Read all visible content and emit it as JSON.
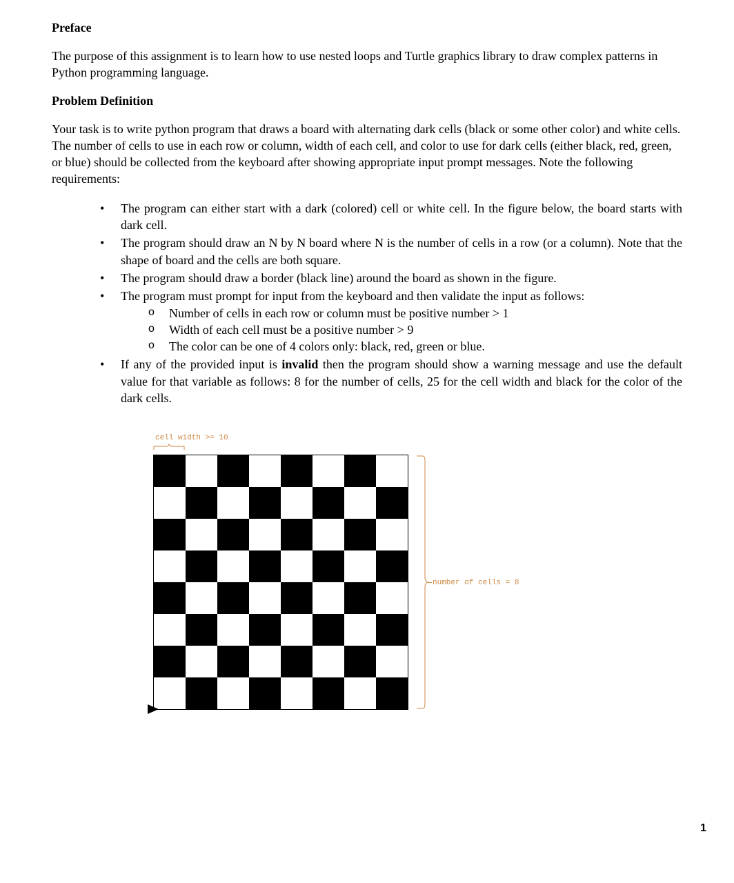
{
  "preface": {
    "heading": "Preface",
    "text": "The purpose of this assignment is to learn how to use nested loops and Turtle graphics library to draw complex patterns in Python programming language."
  },
  "problem": {
    "heading": "Problem Definition",
    "intro": "Your task is to write python program that draws a board with alternating dark cells (black or some other color) and white cells. The number of cells to use in each row or column, width of each cell, and color to use for dark cells (either black, red, green, or blue) should be collected from the keyboard after showing appropriate input prompt messages. Note the following requirements:"
  },
  "bullets": {
    "b1": "The program can either start with a dark (colored) cell or white cell. In the figure below, the board starts with dark cell.",
    "b2": "The program should draw an N by N board where N is the number of cells in a row (or a column). Note that the shape of board and the cells are both square.",
    "b3": "The program should draw a border (black line) around the board as shown in the figure.",
    "b4": "The program must prompt for input from the keyboard and then validate the input as follows:",
    "b4_sub1": "Number of cells in each row or column must be positive number > 1",
    "b4_sub2": "Width of each cell must be a positive number > 9",
    "b4_sub3": "The color can be one of 4 colors only: black, red, green or blue.",
    "b5_pre": "If any of the provided input is ",
    "b5_bold": "invalid",
    "b5_post": " then the program should show a warning message and use the default value for that variable as follows: 8 for the number of cells, 25 for the cell width and black for the color of the dark cells."
  },
  "figure": {
    "cell_width_label": "cell width >= 10",
    "num_cells_label": "number of cells = 8",
    "board": {
      "type": "checkerboard",
      "n": 8,
      "dark_color": "#000000",
      "light_color": "#ffffff",
      "border_color": "#000000",
      "starts_with": "dark",
      "annotation_color": "#cc8844",
      "annotation_font": "Courier New",
      "annotation_fontsize": 11
    }
  },
  "page_number": "1"
}
